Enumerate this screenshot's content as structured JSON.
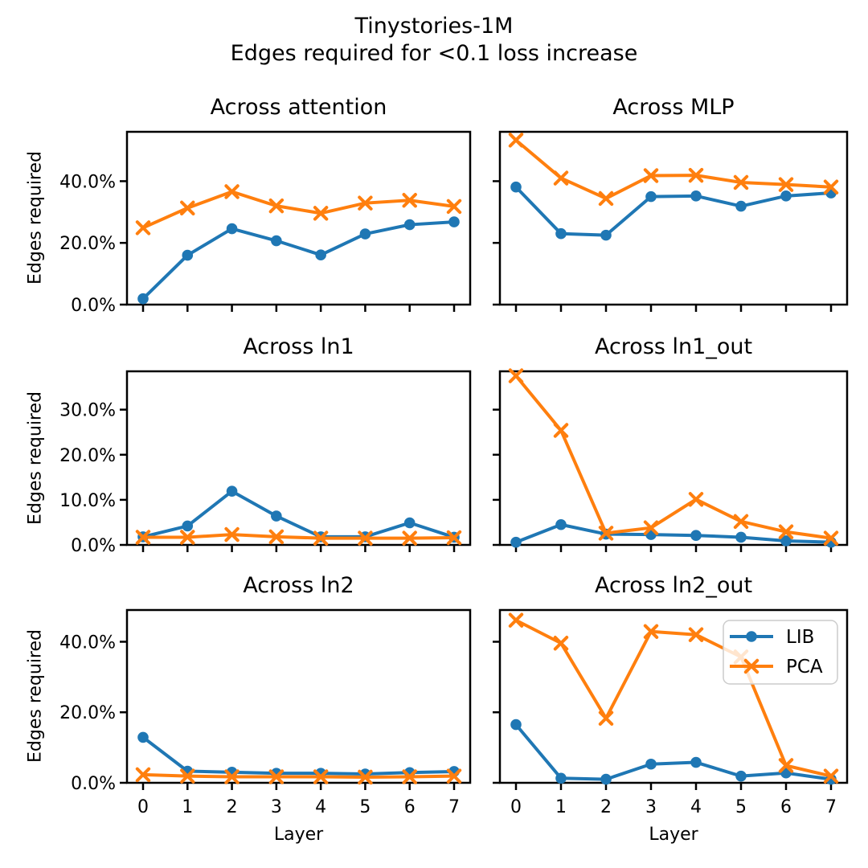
{
  "title": {
    "line1": "Tinystories-1M",
    "line2": "Edges required for <0.1 loss increase"
  },
  "axis": {
    "xlabel": "Layer",
    "ylabel": "Edges required",
    "x_tick_labels": [
      "0",
      "1",
      "2",
      "3",
      "4",
      "5",
      "6",
      "7"
    ]
  },
  "legend": {
    "items": [
      {
        "label": "LIB",
        "marker": "circle",
        "color": "#1f77b4"
      },
      {
        "label": "PCA",
        "marker": "x",
        "color": "#ff7f0e"
      }
    ],
    "position": "upper-right-of-ln2_out"
  },
  "colors": {
    "lib_blue": "#1f77b4",
    "pca_orange": "#ff7f0e",
    "axis_black": "#000000",
    "legend_border": "#cccccc",
    "background": "#ffffff"
  },
  "chart_data": [
    {
      "type": "line",
      "title": "Across attention",
      "x": [
        0,
        1,
        2,
        3,
        4,
        5,
        6,
        7
      ],
      "ylim": [
        0,
        56
      ],
      "yticks": [
        [
          0,
          "0.0%"
        ],
        [
          20,
          "20.0%"
        ],
        [
          40,
          "40.0%"
        ]
      ],
      "show_ytick_labels": true,
      "show_xtick_labels": false,
      "legend_visible": false,
      "grid": false,
      "series": [
        {
          "name": "LIB",
          "marker": "circle",
          "color": "#1f77b4",
          "values": [
            1.9,
            16.0,
            24.6,
            20.7,
            16.1,
            22.9,
            25.9,
            26.8
          ]
        },
        {
          "name": "PCA",
          "marker": "x",
          "color": "#ff7f0e",
          "values": [
            24.9,
            31.3,
            36.6,
            32.0,
            29.6,
            32.9,
            33.8,
            31.8
          ]
        }
      ]
    },
    {
      "type": "line",
      "title": "Across MLP",
      "x": [
        0,
        1,
        2,
        3,
        4,
        5,
        6,
        7
      ],
      "ylim": [
        0,
        56
      ],
      "yticks": [
        [
          0,
          "0.0%"
        ],
        [
          20,
          "20.0%"
        ],
        [
          40,
          "40.0%"
        ]
      ],
      "show_ytick_labels": false,
      "show_xtick_labels": false,
      "legend_visible": false,
      "grid": false,
      "series": [
        {
          "name": "LIB",
          "marker": "circle",
          "color": "#1f77b4",
          "values": [
            38.1,
            23.0,
            22.5,
            35.0,
            35.2,
            31.9,
            35.2,
            36.2
          ]
        },
        {
          "name": "PCA",
          "marker": "x",
          "color": "#ff7f0e",
          "values": [
            53.3,
            41.0,
            34.4,
            41.8,
            41.9,
            39.6,
            38.9,
            38.1
          ]
        }
      ]
    },
    {
      "type": "line",
      "title": "Across ln1",
      "x": [
        0,
        1,
        2,
        3,
        4,
        5,
        6,
        7
      ],
      "ylim": [
        0,
        38.5
      ],
      "yticks": [
        [
          0,
          "0.0%"
        ],
        [
          10,
          "10.0%"
        ],
        [
          20,
          "20.0%"
        ],
        [
          30,
          "30.0%"
        ]
      ],
      "show_ytick_labels": true,
      "show_xtick_labels": false,
      "legend_visible": false,
      "grid": false,
      "series": [
        {
          "name": "LIB",
          "marker": "circle",
          "color": "#1f77b4",
          "values": [
            1.8,
            4.2,
            11.9,
            6.4,
            1.8,
            1.8,
            4.9,
            1.7
          ]
        },
        {
          "name": "PCA",
          "marker": "x",
          "color": "#ff7f0e",
          "values": [
            1.7,
            1.7,
            2.3,
            1.8,
            1.5,
            1.5,
            1.5,
            1.6
          ]
        }
      ]
    },
    {
      "type": "line",
      "title": "Across ln1_out",
      "x": [
        0,
        1,
        2,
        3,
        4,
        5,
        6,
        7
      ],
      "ylim": [
        0,
        38.5
      ],
      "yticks": [
        [
          0,
          "0.0%"
        ],
        [
          10,
          "10.0%"
        ],
        [
          20,
          "20.0%"
        ],
        [
          30,
          "30.0%"
        ]
      ],
      "show_ytick_labels": false,
      "show_xtick_labels": false,
      "legend_visible": false,
      "grid": false,
      "series": [
        {
          "name": "LIB",
          "marker": "circle",
          "color": "#1f77b4",
          "values": [
            0.6,
            4.5,
            2.4,
            2.3,
            2.1,
            1.7,
            0.9,
            0.6
          ]
        },
        {
          "name": "PCA",
          "marker": "x",
          "color": "#ff7f0e",
          "values": [
            37.5,
            25.4,
            2.6,
            3.8,
            10.1,
            5.2,
            2.9,
            1.5
          ]
        }
      ]
    },
    {
      "type": "line",
      "title": "Across ln2",
      "x": [
        0,
        1,
        2,
        3,
        4,
        5,
        6,
        7
      ],
      "ylim": [
        0,
        49
      ],
      "yticks": [
        [
          0,
          "0.0%"
        ],
        [
          20,
          "20.0%"
        ],
        [
          40,
          "40.0%"
        ]
      ],
      "show_ytick_labels": true,
      "show_xtick_labels": true,
      "legend_visible": false,
      "grid": false,
      "series": [
        {
          "name": "LIB",
          "marker": "circle",
          "color": "#1f77b4",
          "values": [
            12.9,
            3.3,
            3.0,
            2.7,
            2.7,
            2.5,
            2.9,
            3.2
          ]
        },
        {
          "name": "PCA",
          "marker": "x",
          "color": "#ff7f0e",
          "values": [
            2.3,
            1.9,
            1.7,
            1.7,
            1.7,
            1.6,
            1.7,
            1.9
          ]
        }
      ]
    },
    {
      "type": "line",
      "title": "Across ln2_out",
      "x": [
        0,
        1,
        2,
        3,
        4,
        5,
        6,
        7
      ],
      "ylim": [
        0,
        49
      ],
      "yticks": [
        [
          0,
          "0.0%"
        ],
        [
          20,
          "20.0%"
        ],
        [
          40,
          "40.0%"
        ]
      ],
      "show_ytick_labels": false,
      "show_xtick_labels": true,
      "legend_visible": true,
      "grid": false,
      "series": [
        {
          "name": "LIB",
          "marker": "circle",
          "color": "#1f77b4",
          "values": [
            16.5,
            1.3,
            1.0,
            5.3,
            5.8,
            1.9,
            2.8,
            1.0
          ]
        },
        {
          "name": "PCA",
          "marker": "x",
          "color": "#ff7f0e",
          "values": [
            46.1,
            39.6,
            18.3,
            42.9,
            42.0,
            35.7,
            4.9,
            1.9
          ]
        }
      ]
    }
  ]
}
